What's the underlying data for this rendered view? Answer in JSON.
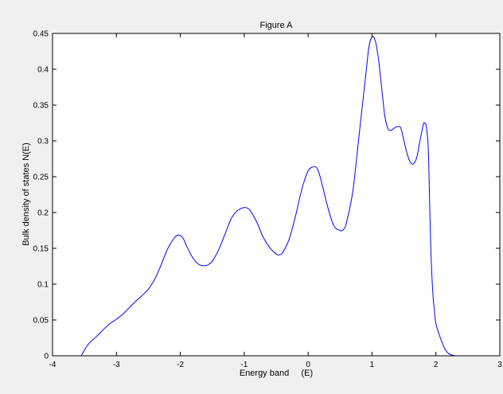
{
  "chart_data": {
    "type": "line",
    "title": "Figure A",
    "xlabel": "Energy band     (E)",
    "ylabel": "Bulk density of states N(E)",
    "xlim": [
      -4,
      3
    ],
    "ylim": [
      0,
      0.45
    ],
    "grid": false,
    "legend": "none",
    "xticks": [
      "-4",
      "-3",
      "-2",
      "-1",
      "0",
      "1",
      "2",
      "3"
    ],
    "yticks": [
      "0",
      "0.05",
      "0.1",
      "0.15",
      "0.2",
      "0.25",
      "0.3",
      "0.35",
      "0.4",
      "0.45"
    ],
    "colors": {
      "line": "#0000ff",
      "axes_bg": "#ffffff",
      "figure_bg": "#f0f0f0"
    },
    "series": [
      {
        "x": [
          -3.55,
          -3.5,
          -3.45,
          -3.4,
          -3.3,
          -3.2,
          -3.1,
          -3.0,
          -2.9,
          -2.8,
          -2.7,
          -2.6,
          -2.5,
          -2.4,
          -2.3,
          -2.2,
          -2.1,
          -2.05,
          -2.0,
          -1.95,
          -1.9,
          -1.8,
          -1.7,
          -1.6,
          -1.55,
          -1.5,
          -1.4,
          -1.3,
          -1.2,
          -1.1,
          -1.0,
          -0.95,
          -0.9,
          -0.8,
          -0.7,
          -0.6,
          -0.5,
          -0.45,
          -0.4,
          -0.3,
          -0.2,
          -0.1,
          0.0,
          0.1,
          0.15,
          0.2,
          0.3,
          0.4,
          0.5,
          0.55,
          0.6,
          0.7,
          0.8,
          0.9,
          0.95,
          1.0,
          1.05,
          1.1,
          1.15,
          1.2,
          1.25,
          1.3,
          1.35,
          1.4,
          1.45,
          1.5,
          1.55,
          1.6,
          1.65,
          1.7,
          1.75,
          1.8,
          1.82,
          1.85,
          1.88,
          1.9,
          1.92,
          1.95,
          1.98,
          2.0,
          2.05,
          2.1,
          2.15,
          2.2,
          2.25,
          2.3,
          2.35,
          2.4,
          2.45
        ],
        "y": [
          0.0,
          0.008,
          0.015,
          0.02,
          0.028,
          0.037,
          0.045,
          0.051,
          0.058,
          0.067,
          0.076,
          0.084,
          0.093,
          0.107,
          0.127,
          0.149,
          0.164,
          0.168,
          0.168,
          0.163,
          0.153,
          0.136,
          0.127,
          0.126,
          0.128,
          0.132,
          0.148,
          0.17,
          0.192,
          0.203,
          0.207,
          0.206,
          0.202,
          0.186,
          0.165,
          0.151,
          0.142,
          0.141,
          0.144,
          0.162,
          0.194,
          0.232,
          0.258,
          0.264,
          0.26,
          0.246,
          0.21,
          0.182,
          0.175,
          0.176,
          0.186,
          0.23,
          0.31,
          0.39,
          0.43,
          0.445,
          0.44,
          0.415,
          0.375,
          0.335,
          0.317,
          0.315,
          0.318,
          0.32,
          0.318,
          0.3,
          0.282,
          0.27,
          0.268,
          0.277,
          0.3,
          0.322,
          0.325,
          0.32,
          0.29,
          0.22,
          0.15,
          0.09,
          0.06,
          0.045,
          0.03,
          0.018,
          0.008,
          0.003,
          0.001,
          0.0,
          0.0,
          0.0,
          0.0
        ]
      }
    ]
  }
}
